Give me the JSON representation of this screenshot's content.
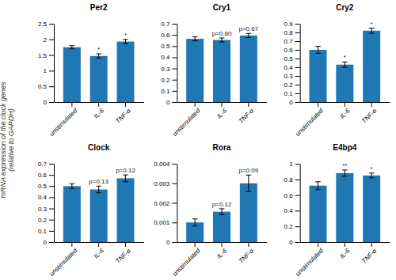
{
  "chart_data": [
    {
      "type": "bar",
      "title": "Per2",
      "ylabel": "mRNA expression of the clock genes\n(relative to GAPDH)",
      "categories": [
        "unstimulated",
        "IL-6",
        "TNF-α"
      ],
      "values": [
        1.75,
        1.47,
        1.93
      ],
      "errors": [
        0.05,
        0.07,
        0.07
      ],
      "ylim": [
        0,
        2.5
      ],
      "yticks": [
        0,
        0.5,
        1,
        1.5,
        2,
        2.5
      ],
      "grid": false,
      "annotations": [
        {
          "category": "IL-6",
          "text": "*"
        },
        {
          "category": "TNF-α",
          "text": "*"
        }
      ]
    },
    {
      "type": "bar",
      "title": "Cry1",
      "categories": [
        "unstimulated",
        "IL-6",
        "TNF-α"
      ],
      "values": [
        0.565,
        0.555,
        0.595
      ],
      "errors": [
        0.018,
        0.018,
        0.018
      ],
      "ylim": [
        0,
        0.7
      ],
      "yticks": [
        0,
        0.1,
        0.2,
        0.3,
        0.4,
        0.5,
        0.6,
        0.7
      ],
      "grid": false,
      "annotations": [
        {
          "category": "IL-6",
          "text": "p=0.80"
        },
        {
          "category": "TNF-α",
          "text": "p=0.67"
        }
      ]
    },
    {
      "type": "bar",
      "title": "Cry2",
      "categories": [
        "unstimulated",
        "IL-6",
        "TNF-α"
      ],
      "values": [
        0.6,
        0.43,
        0.82
      ],
      "errors": [
        0.04,
        0.03,
        0.03
      ],
      "ylim": [
        0,
        0.9
      ],
      "yticks": [
        0,
        0.1,
        0.2,
        0.3,
        0.4,
        0.5,
        0.6,
        0.7,
        0.8,
        0.9
      ],
      "grid": false,
      "annotations": [
        {
          "category": "IL-6",
          "text": "*"
        },
        {
          "category": "TNF-α",
          "text": "*"
        }
      ]
    },
    {
      "type": "bar",
      "title": "Clock",
      "categories": [
        "unstimulated",
        "IL-6",
        "TNF-α"
      ],
      "values": [
        0.5,
        0.47,
        0.57
      ],
      "errors": [
        0.02,
        0.03,
        0.03
      ],
      "ylim": [
        0,
        0.7
      ],
      "yticks": [
        0,
        0.1,
        0.2,
        0.3,
        0.4,
        0.5,
        0.6,
        0.7
      ],
      "grid": false,
      "annotations": [
        {
          "category": "IL-6",
          "text": "p=0.13"
        },
        {
          "category": "TNF-α",
          "text": "p=0.12"
        }
      ]
    },
    {
      "type": "bar",
      "title": "Rora",
      "categories": [
        "unstimulated",
        "IL-6",
        "TNF-α"
      ],
      "values": [
        0.001,
        0.00155,
        0.003
      ],
      "errors": [
        0.00018,
        0.00015,
        0.00042
      ],
      "ylim": [
        0,
        0.004
      ],
      "yticks": [
        0,
        0.001,
        0.002,
        0.003,
        0.004
      ],
      "grid": false,
      "annotations": [
        {
          "category": "IL-6",
          "text": "p=0.12"
        },
        {
          "category": "TNF-α",
          "text": "p=0.09"
        }
      ]
    },
    {
      "type": "bar",
      "title": "E4bp4",
      "categories": [
        "unstimulated",
        "IL-6",
        "TNF-α"
      ],
      "values": [
        0.72,
        0.88,
        0.85
      ],
      "errors": [
        0.05,
        0.04,
        0.03
      ],
      "ylim": [
        0,
        1.0
      ],
      "yticks": [
        0,
        0.2,
        0.4,
        0.6,
        0.8,
        1
      ],
      "grid": false,
      "annotations": [
        {
          "category": "IL-6",
          "text": "**"
        },
        {
          "category": "TNF-α",
          "text": "*"
        }
      ]
    }
  ]
}
